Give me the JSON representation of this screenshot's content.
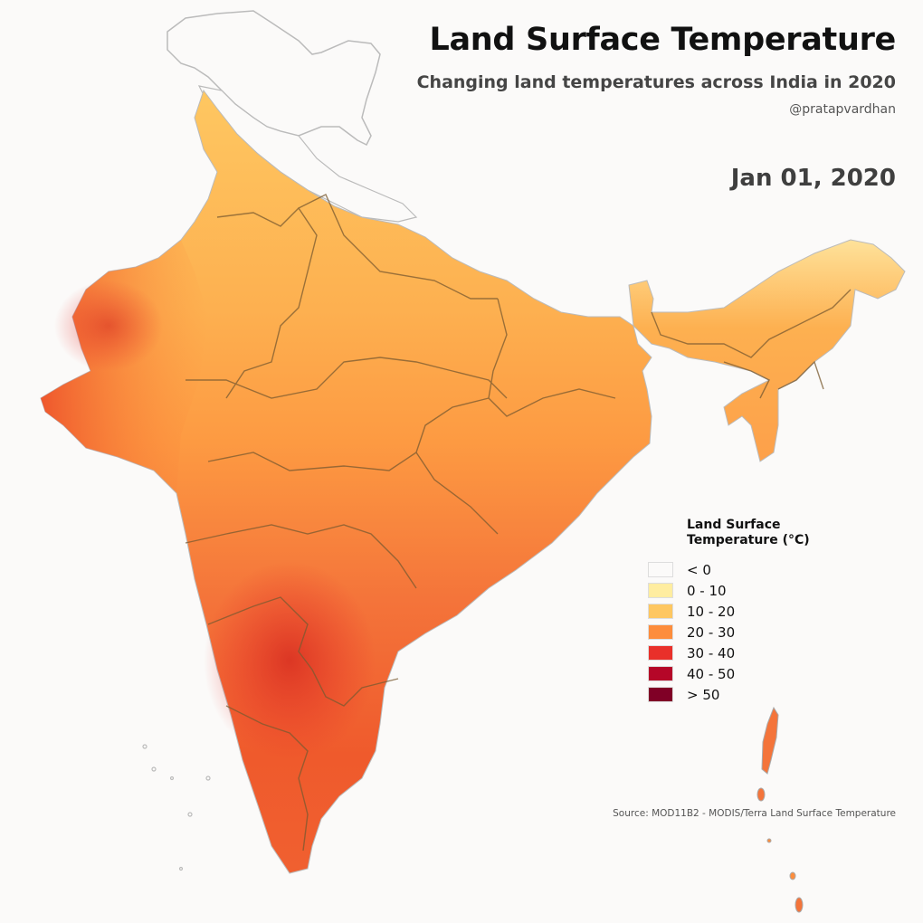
{
  "header": {
    "title": "Land Surface Temperature",
    "subtitle": "Changing land temperatures across India in 2020",
    "author": "@pratapvardhan",
    "date": "Jan 01, 2020"
  },
  "legend": {
    "title_line1": "Land Surface",
    "title_line2": "Temperature (°C)",
    "items": [
      {
        "label": "< 0",
        "color": "#fbfaf9"
      },
      {
        "label": "0 - 10",
        "color": "#ffeda0"
      },
      {
        "label": "10 - 20",
        "color": "#fec761"
      },
      {
        "label": "20 - 30",
        "color": "#fd8d3c"
      },
      {
        "label": "30 - 40",
        "color": "#e9302a"
      },
      {
        "label": "40 - 50",
        "color": "#b50628"
      },
      {
        "label": "> 50",
        "color": "#800026"
      }
    ]
  },
  "source": "Source: MOD11B2 - MODIS/Terra Land Surface Temperature",
  "map": {
    "country": "India",
    "regions": [
      {
        "name": "ladakh-jk",
        "bin": "< 0"
      },
      {
        "name": "himalayan-foothills",
        "bin": "0 - 10"
      },
      {
        "name": "northern-plains",
        "bin": "10 - 20"
      },
      {
        "name": "northeast-hills",
        "bin": "0 - 10"
      },
      {
        "name": "northeast-valley",
        "bin": "20 - 30"
      },
      {
        "name": "central-india",
        "bin": "20 - 30"
      },
      {
        "name": "western-india",
        "bin": "30 - 40"
      },
      {
        "name": "deccan-south",
        "bin": "30 - 40"
      },
      {
        "name": "andaman-nicobar",
        "bin": "20 - 30"
      }
    ]
  }
}
